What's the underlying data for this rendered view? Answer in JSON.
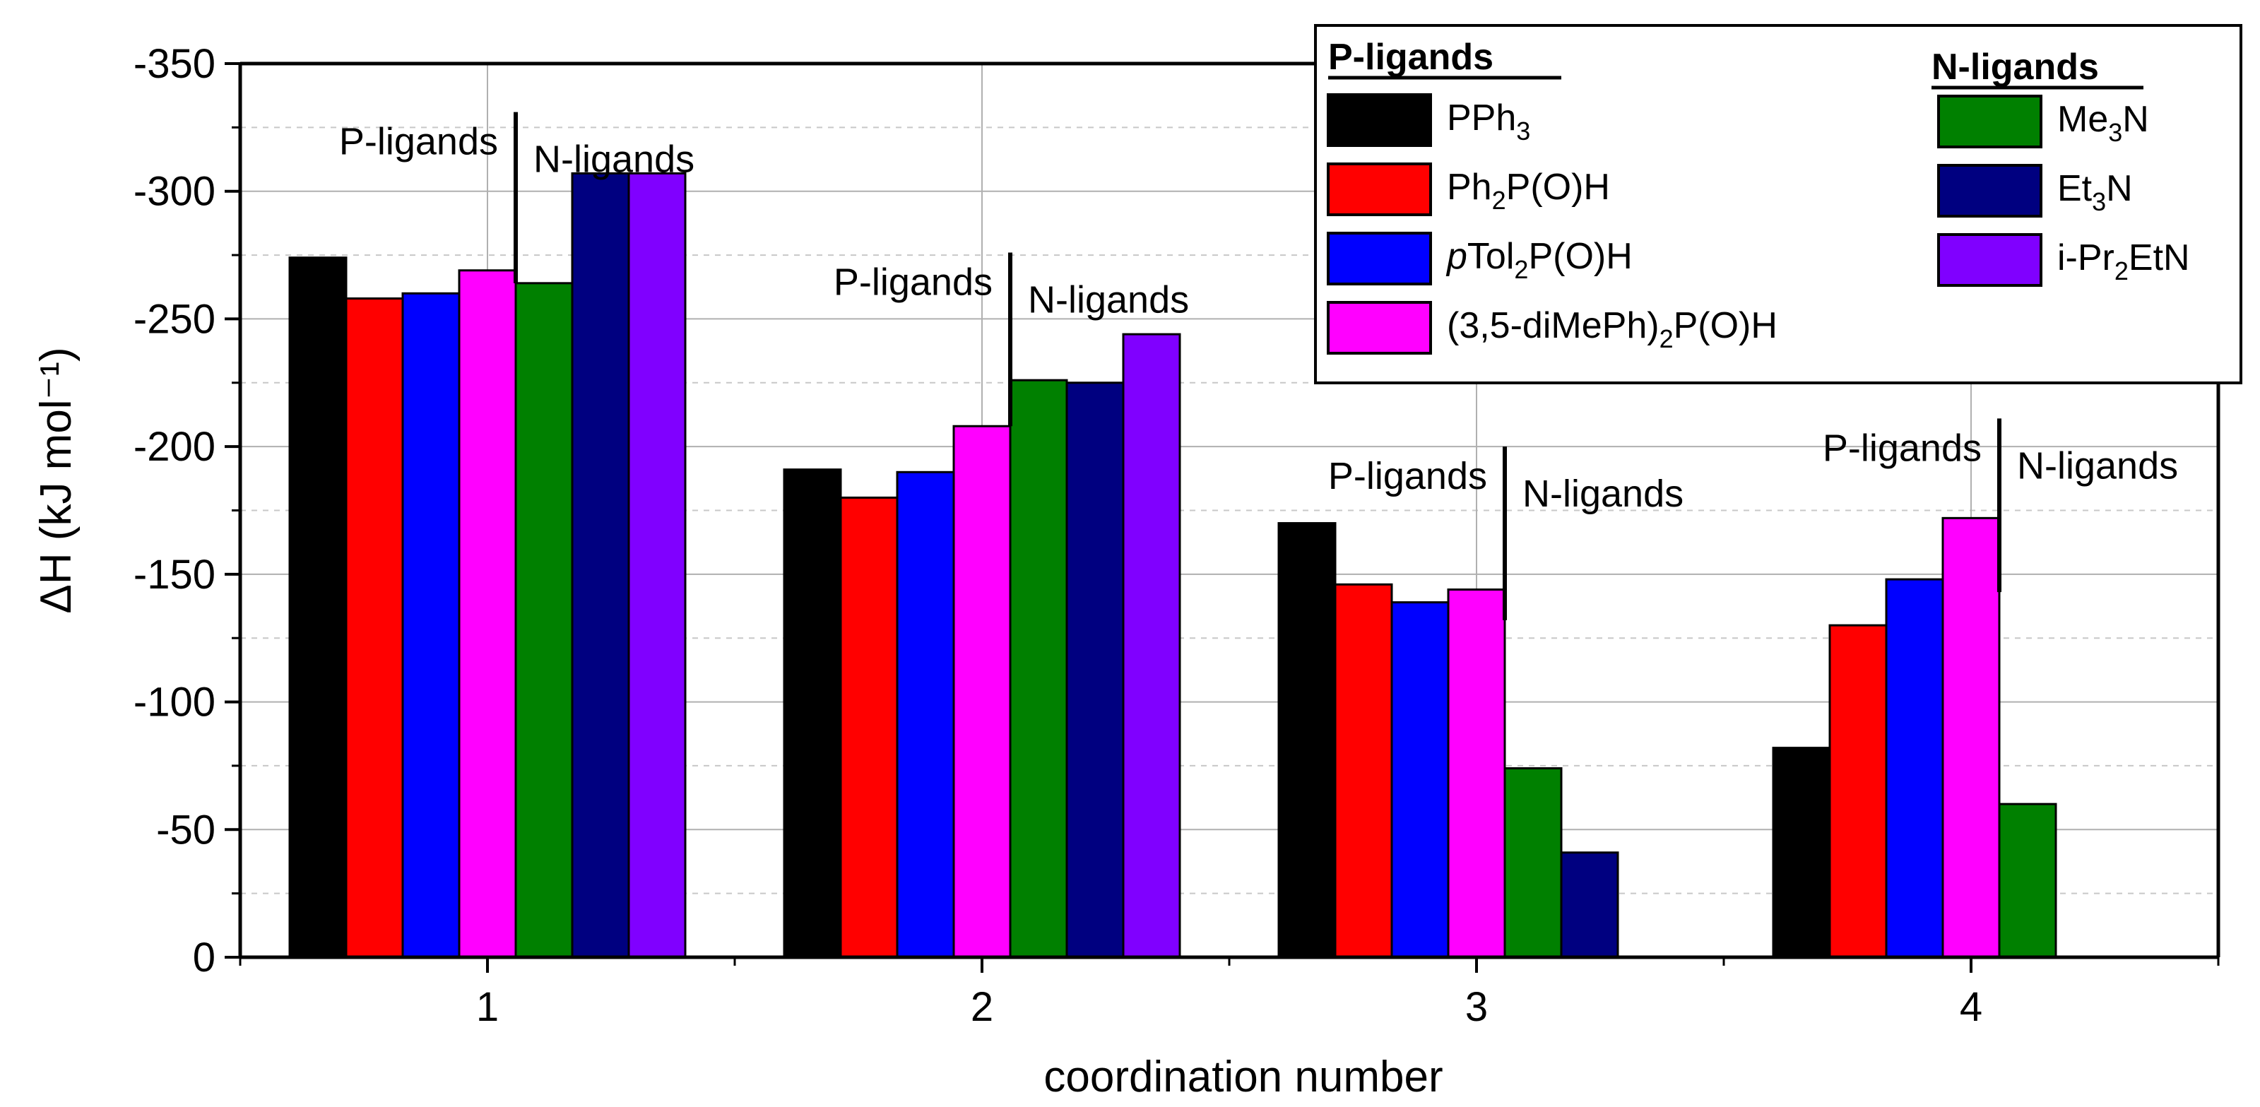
{
  "chart_data": {
    "type": "bar",
    "title": "",
    "xlabel": "coordination number",
    "ylabel": "ΔH (kJ mol⁻¹)",
    "ylim": [
      0,
      -350
    ],
    "yticks": [
      0,
      -50,
      -100,
      -150,
      -200,
      -250,
      -300,
      -350
    ],
    "ytick_labels": [
      "0",
      "-50",
      "-100",
      "-150",
      "-200",
      "-250",
      "-300",
      "-350"
    ],
    "categories": [
      "1",
      "2",
      "3",
      "4"
    ],
    "grid": true,
    "legend_position": "top-right",
    "series": [
      {
        "name": "PPh3",
        "group": "P-ligands",
        "color": "#000000",
        "values": [
          -274,
          -191,
          -170,
          -82
        ]
      },
      {
        "name": "Ph2P(O)H",
        "group": "P-ligands",
        "color": "#ff0000",
        "values": [
          -258,
          -180,
          -146,
          -130
        ]
      },
      {
        "name": "pTol2P(O)H",
        "group": "P-ligands",
        "color": "#0000ff",
        "values": [
          -260,
          -190,
          -139,
          -148
        ]
      },
      {
        "name": "(3,5-diMePh)2P(O)H",
        "group": "P-ligands",
        "color": "#ff00ff",
        "values": [
          -269,
          -208,
          -144,
          -172
        ]
      },
      {
        "name": "Me3N",
        "group": "N-ligands",
        "color": "#008000",
        "values": [
          -264,
          -226,
          -74,
          -60
        ]
      },
      {
        "name": "Et3N",
        "group": "N-ligands",
        "color": "#000080",
        "values": [
          -307,
          -225,
          -41,
          null
        ]
      },
      {
        "name": "i-Pr2EtN",
        "group": "N-ligands",
        "color": "#8000ff",
        "values": [
          -307,
          -244,
          null,
          null
        ]
      }
    ],
    "annotations": {
      "p_label": "P-ligands",
      "n_label": "N-ligands",
      "separators": [
        {
          "category": "1",
          "top": -331,
          "bottom": -264
        },
        {
          "category": "2",
          "top": -276,
          "bottom": -208
        },
        {
          "category": "3",
          "top": -200,
          "bottom": -132
        },
        {
          "category": "4",
          "top": -211,
          "bottom": -143
        }
      ]
    },
    "legend": {
      "p_heading": "P-ligands",
      "n_heading": "N-ligands",
      "p_entries": [
        {
          "base": "PPh",
          "sub": "3",
          "rest": "",
          "italic": ""
        },
        {
          "base": "Ph",
          "sub": "2",
          "rest": "P(O)H",
          "italic": ""
        },
        {
          "base": "Tol",
          "sub": "2",
          "rest": "P(O)H",
          "italic": "p"
        },
        {
          "base": "(3,5-diMePh)",
          "sub": "2",
          "rest": "P(O)H",
          "italic": ""
        }
      ],
      "n_entries": [
        {
          "base": "Me",
          "sub": "3",
          "rest": "N",
          "italic": ""
        },
        {
          "base": "Et",
          "sub": "3",
          "rest": "N",
          "italic": ""
        },
        {
          "base": "i-Pr",
          "sub": "2",
          "rest": "EtN",
          "italic": ""
        }
      ]
    }
  }
}
